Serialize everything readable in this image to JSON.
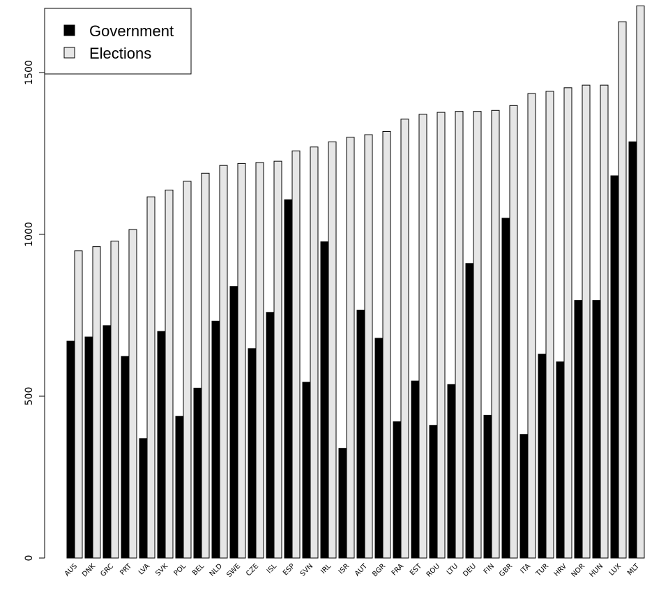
{
  "chart_data": {
    "type": "bar",
    "title": "",
    "xlabel": "",
    "ylabel": "",
    "ylim": [
      0,
      1700
    ],
    "yticks": [
      0,
      500,
      1000,
      1500
    ],
    "grid": false,
    "legend_position": "top-left",
    "categories": [
      "AUS",
      "DNK",
      "GRC",
      "PRT",
      "LVA",
      "SVK",
      "POL",
      "BEL",
      "NLD",
      "SWE",
      "CZE",
      "ISL",
      "ESP",
      "SVN",
      "IRL",
      "ISR",
      "AUT",
      "BGR",
      "FRA",
      "EST",
      "ROU",
      "LTU",
      "DEU",
      "FIN",
      "GBR",
      "ITA",
      "TUR",
      "HRV",
      "NOR",
      "HUN",
      "LUX",
      "MLT"
    ],
    "series": [
      {
        "name": "Government",
        "color": "#000000",
        "values": [
          670,
          683,
          718,
          623,
          369,
          700,
          438,
          525,
          732,
          839,
          647,
          759,
          1107,
          543,
          977,
          339,
          766,
          679,
          421,
          547,
          410,
          536,
          910,
          441,
          1050,
          382,
          630,
          606,
          796,
          796,
          1181,
          1286
        ]
      },
      {
        "name": "Elections",
        "color": "#e6e6e6",
        "values": [
          949,
          962,
          979,
          1015,
          1116,
          1137,
          1164,
          1189,
          1213,
          1219,
          1222,
          1226,
          1258,
          1270,
          1286,
          1300,
          1308,
          1318,
          1356,
          1371,
          1377,
          1380,
          1380,
          1383,
          1398,
          1435,
          1442,
          1453,
          1461,
          1461,
          1657,
          1706
        ]
      }
    ]
  }
}
